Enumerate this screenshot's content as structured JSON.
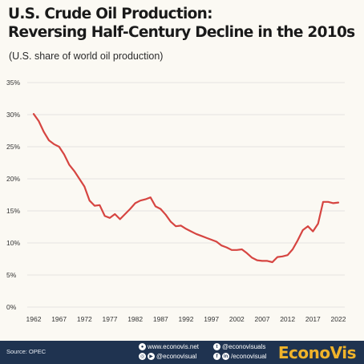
{
  "title_line1": "U.S. Crude Oil Production:",
  "title_line2": "Reversing Half-Century Decline in the 2010s",
  "subtitle": "(U.S. share of world oil production)",
  "colors": {
    "line": "#d64541",
    "grid": "#dcdcdc",
    "footer": "#1f3350",
    "brand": "#f0b32a",
    "background": "#fbf9f3"
  },
  "chart_data": {
    "type": "line",
    "title": "U.S. Crude Oil Production: Reversing Half-Century Decline in the 2010s",
    "subtitle": "(U.S. share of world oil production)",
    "xlabel": "",
    "ylabel": "",
    "xlim": [
      1962,
      2022
    ],
    "ylim": [
      0,
      35
    ],
    "y_ticks": [
      "0%",
      "5%",
      "10%",
      "15%",
      "20%",
      "25%",
      "30%",
      "35%"
    ],
    "x_ticks": [
      "1962",
      "1967",
      "1972",
      "1977",
      "1982",
      "1987",
      "1992",
      "1997",
      "2002",
      "2007",
      "2012",
      "2017",
      "2022"
    ],
    "grid": "horizontal",
    "series": [
      {
        "x": [
          1962,
          1963,
          1964,
          1965,
          1966,
          1967,
          1968,
          1969,
          1970,
          1971,
          1972,
          1973,
          1974,
          1975,
          1976,
          1977,
          1978,
          1979,
          1980,
          1981,
          1982,
          1983,
          1984,
          1985,
          1986,
          1987,
          1988,
          1989,
          1990,
          1991,
          1992,
          1993,
          1994,
          1995,
          1996,
          1997,
          1998,
          1999,
          2000,
          2001,
          2002,
          2003,
          2004,
          2005,
          2006,
          2007,
          2008,
          2009,
          2010,
          2011,
          2012,
          2013,
          2014,
          2015,
          2016,
          2017,
          2018,
          2019,
          2020,
          2021,
          2022
        ],
        "values": [
          30.1,
          29.0,
          27.3,
          26.0,
          25.4,
          25.0,
          23.8,
          22.2,
          21.2,
          20.0,
          18.8,
          16.6,
          15.8,
          15.9,
          14.2,
          13.9,
          14.5,
          13.7,
          14.5,
          15.3,
          16.2,
          16.6,
          16.8,
          17.1,
          15.7,
          15.3,
          14.4,
          13.3,
          12.6,
          12.7,
          12.2,
          11.8,
          11.4,
          11.1,
          10.8,
          10.5,
          10.2,
          9.6,
          9.3,
          8.9,
          8.9,
          9.0,
          8.4,
          7.7,
          7.3,
          7.2,
          7.2,
          7.0,
          7.8,
          7.9,
          8.1,
          9.0,
          10.4,
          12.0,
          12.6,
          11.8,
          13.0,
          16.4,
          16.4,
          16.2,
          16.3
        ]
      }
    ]
  },
  "footer": {
    "source": "Source: OPEC",
    "website": "www.econovis.net",
    "youtube": "@econovisual",
    "twitter": "@econovisuals",
    "facebook_linkedin": "/econovisual",
    "brand": "EconoVis"
  }
}
